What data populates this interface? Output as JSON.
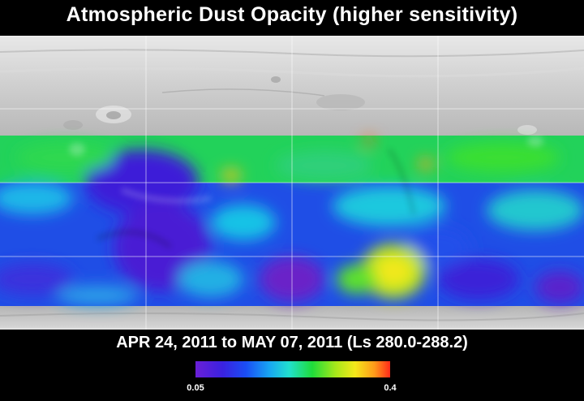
{
  "title": "Atmospheric Dust Opacity (higher sensitivity)",
  "date_range": "APR 24, 2011 to MAY 07, 2011 (Ls 280.0-288.2)",
  "colorbar": {
    "min_label": "0.05",
    "max_label": "0.4",
    "colors": [
      "#6a1fd6",
      "#3a22e0",
      "#1a4ef5",
      "#18a6f2",
      "#21e0cf",
      "#1fdc3a",
      "#a6e81a",
      "#f5e81a",
      "#ff9a1a",
      "#ff2a1a"
    ]
  },
  "map": {
    "base_color": "#c8c8c8",
    "grid_color": "#ffffff"
  }
}
